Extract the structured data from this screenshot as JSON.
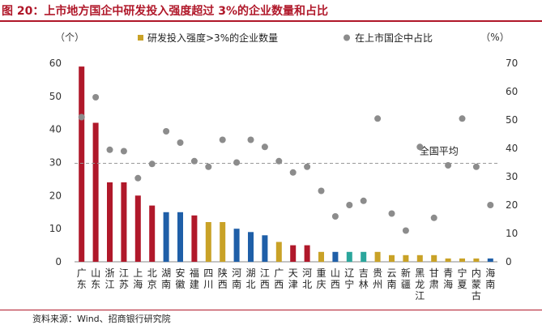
{
  "header": {
    "title": "图 20：上市地方国企中研发投入强度超过 3%的企业数量和占比"
  },
  "footer": {
    "source": "资料来源：Wind、招商银行研究院"
  },
  "chart_data": {
    "type": "bar",
    "left_axis_unit": "（个）",
    "right_axis_unit": "（%）",
    "ylim_left": [
      0,
      60
    ],
    "yticks_left": [
      0,
      10,
      20,
      30,
      40,
      50,
      60
    ],
    "ylim_right": [
      0,
      70
    ],
    "yticks_right": [
      0,
      10,
      20,
      30,
      40,
      50,
      60,
      70
    ],
    "grid": false,
    "legend_position": "top",
    "categories": [
      "广东",
      "山东",
      "浙江",
      "江苏",
      "上海",
      "北京",
      "湖南",
      "安徽",
      "福建",
      "四川",
      "陕西",
      "河南",
      "湖北",
      "江西",
      "广西",
      "天津",
      "河北",
      "重庆",
      "山西",
      "辽宁",
      "吉林",
      "贵州",
      "云南",
      "新疆",
      "黑龙江",
      "甘肃",
      "青海",
      "宁夏",
      "内蒙古",
      "海南"
    ],
    "series": [
      {
        "name": "研发投入强度>3%的企业数量",
        "kind": "bar",
        "axis": "left",
        "values": [
          59,
          42,
          24,
          24,
          20,
          17,
          15,
          15,
          14,
          12,
          12,
          10,
          9,
          8,
          6,
          5,
          5,
          3,
          3,
          3,
          3,
          3,
          2,
          2,
          2,
          2,
          1,
          1,
          1,
          1
        ],
        "colors": [
          "#b0182a",
          "#b0182a",
          "#b0182a",
          "#b0182a",
          "#b0182a",
          "#b0182a",
          "#1f5fa8",
          "#1f5fa8",
          "#b0182a",
          "#c9a227",
          "#c9a227",
          "#1f5fa8",
          "#1f5fa8",
          "#1f5fa8",
          "#c9a227",
          "#b0182a",
          "#b0182a",
          "#c9a227",
          "#1f5fa8",
          "#2ba69c",
          "#2ba69c",
          "#c9a227",
          "#c9a227",
          "#c9a227",
          "#c9a227",
          "#c9a227",
          "#c9a227",
          "#c9a227",
          "#c9a227",
          "#1f5fa8"
        ]
      },
      {
        "name": "在上市国企中占比",
        "kind": "scatter",
        "axis": "right",
        "color": "#8c8c8c",
        "values": [
          51,
          58,
          39.5,
          39,
          29.5,
          34.5,
          46,
          42,
          35.5,
          33.5,
          43,
          35,
          43,
          40.5,
          35.5,
          31.5,
          33.5,
          25,
          16,
          20,
          21.5,
          50.5,
          17,
          11,
          40.5,
          15.5,
          34,
          50.5,
          33.5,
          20
        ]
      }
    ],
    "annotations": [
      {
        "text": "全国平均",
        "axis": "right",
        "value": 34.7,
        "style": "dashed-line"
      }
    ]
  }
}
